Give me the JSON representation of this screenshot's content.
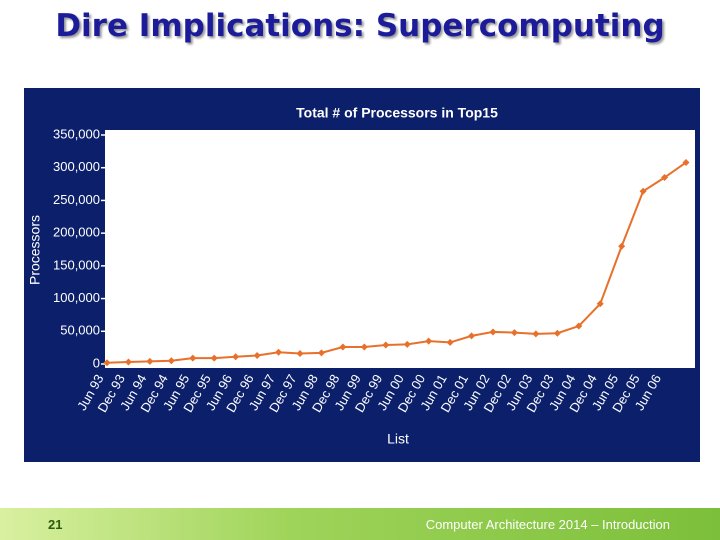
{
  "slide": {
    "title": "Dire Implications: Supercomputing",
    "page_number": "21",
    "footer": "Computer Architecture 2014 – Introduction"
  },
  "chart_data": {
    "type": "line",
    "title": "Total # of Processors in Top15",
    "x_label": "List",
    "y_label": "Processors",
    "categories": [
      "Jun 93",
      "Dec 93",
      "Jun 94",
      "Dec 94",
      "Jun 95",
      "Dec 95",
      "Jun 96",
      "Dec 96",
      "Jun 97",
      "Dec 97",
      "Jun 98",
      "Dec 98",
      "Jun 99",
      "Dec 99",
      "Jun 00",
      "Dec 00",
      "Jun 01",
      "Dec 01",
      "Jun 02",
      "Dec 02",
      "Jun 03",
      "Dec 03",
      "Jun 04",
      "Dec 04",
      "Jun 05",
      "Dec 05",
      "Jun 06",
      null
    ],
    "series": [
      {
        "name": "Processors",
        "color": "#e8702a",
        "values": [
          2000,
          3000,
          4000,
          5000,
          9000,
          9000,
          11000,
          13000,
          18000,
          16000,
          17000,
          26000,
          26000,
          29000,
          30000,
          35000,
          33000,
          43000,
          49000,
          48000,
          46000,
          47000,
          58000,
          92000,
          180000,
          264000,
          285000,
          308000
        ]
      }
    ],
    "ylim": [
      0,
      350000
    ],
    "yticks": [
      0,
      {
        "value": 50000,
        "label": "50,000"
      },
      {
        "value": 100000,
        "label": "100,000"
      },
      {
        "value": 150000,
        "label": "150,000"
      },
      {
        "value": 200000,
        "label": "200,000"
      },
      {
        "value": 250000,
        "label": "250,000"
      },
      {
        "value": 300000,
        "label": "300,000"
      },
      {
        "value": 350000,
        "label": "350,000"
      }
    ],
    "grid": false
  }
}
